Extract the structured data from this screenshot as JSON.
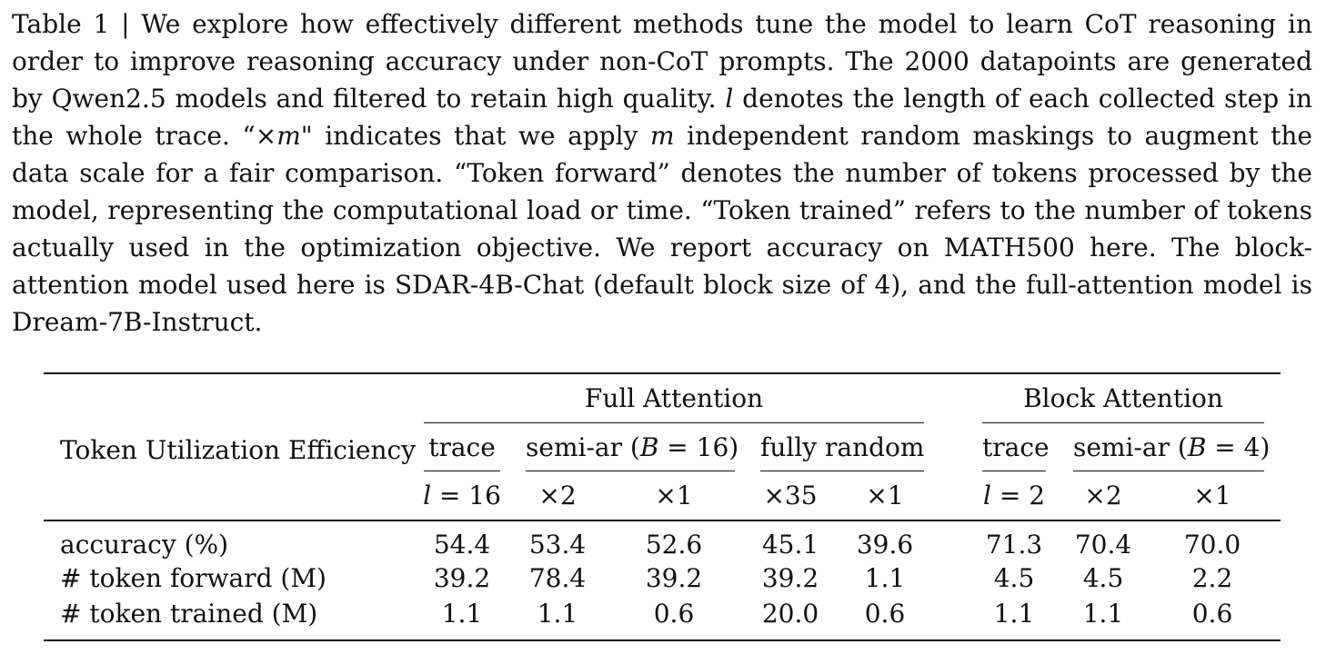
{
  "caption": {
    "label": "Table 1",
    "sep": " | ",
    "part1": "We explore how effectively different methods tune the model to learn CoT reasoning in order to improve reasoning accuracy under non-CoT prompts. The 2000 datapoints are generated by Qwen2.5 models and filtered to retain high quality. ",
    "var_l": "l",
    "part2": " denotes the length of each collected step in the whole trace. “×",
    "var_m1": "m",
    "part3": "\" indicates that we apply ",
    "var_m2": "m",
    "part4": " independent random maskings to augment the data scale for a fair comparison. “Token forward” denotes the number of tokens processed by the model, representing the computational load or time. “Token trained” refers to the number of tokens actually used in the optimization objective. We report accuracy on MATH500 here. The block-attention model used here is SDAR-4B-Chat (default block size of 4), and the full-attention model is Dream-7B-Instruct."
  },
  "table": {
    "row_header_title": "Token Utilization Efficiency",
    "groups": {
      "full": "Full Attention",
      "block": "Block Attention"
    },
    "methods": {
      "full_trace": "trace",
      "full_semi_prefix": "semi-ar (",
      "full_semi_var": "B",
      "full_semi_suffix": " = 16)",
      "full_random": "fully random",
      "block_trace": "trace",
      "block_semi_prefix": "semi-ar (",
      "block_semi_var": "B",
      "block_semi_suffix": " = 4)"
    },
    "settings": {
      "full_trace_var": "l",
      "full_trace_val": " = 16",
      "full_semi_x2": "×2",
      "full_semi_x1": "×1",
      "full_rand_x35": "×35",
      "full_rand_x1": "×1",
      "block_trace_var": "l",
      "block_trace_val": " = 2",
      "block_semi_x2": "×2",
      "block_semi_x1": "×1"
    },
    "rows": [
      {
        "label": "accuracy (%)",
        "values": [
          "54.4",
          "53.4",
          "52.6",
          "45.1",
          "39.6",
          "71.3",
          "70.4",
          "70.0"
        ]
      },
      {
        "label": "# token forward (M)",
        "values": [
          "39.2",
          "78.4",
          "39.2",
          "39.2",
          "1.1",
          "4.5",
          "4.5",
          "2.2"
        ]
      },
      {
        "label": "# token trained (M)",
        "values": [
          "1.1",
          "1.1",
          "0.6",
          "20.0",
          "0.6",
          "1.1",
          "1.1",
          "0.6"
        ]
      }
    ]
  }
}
